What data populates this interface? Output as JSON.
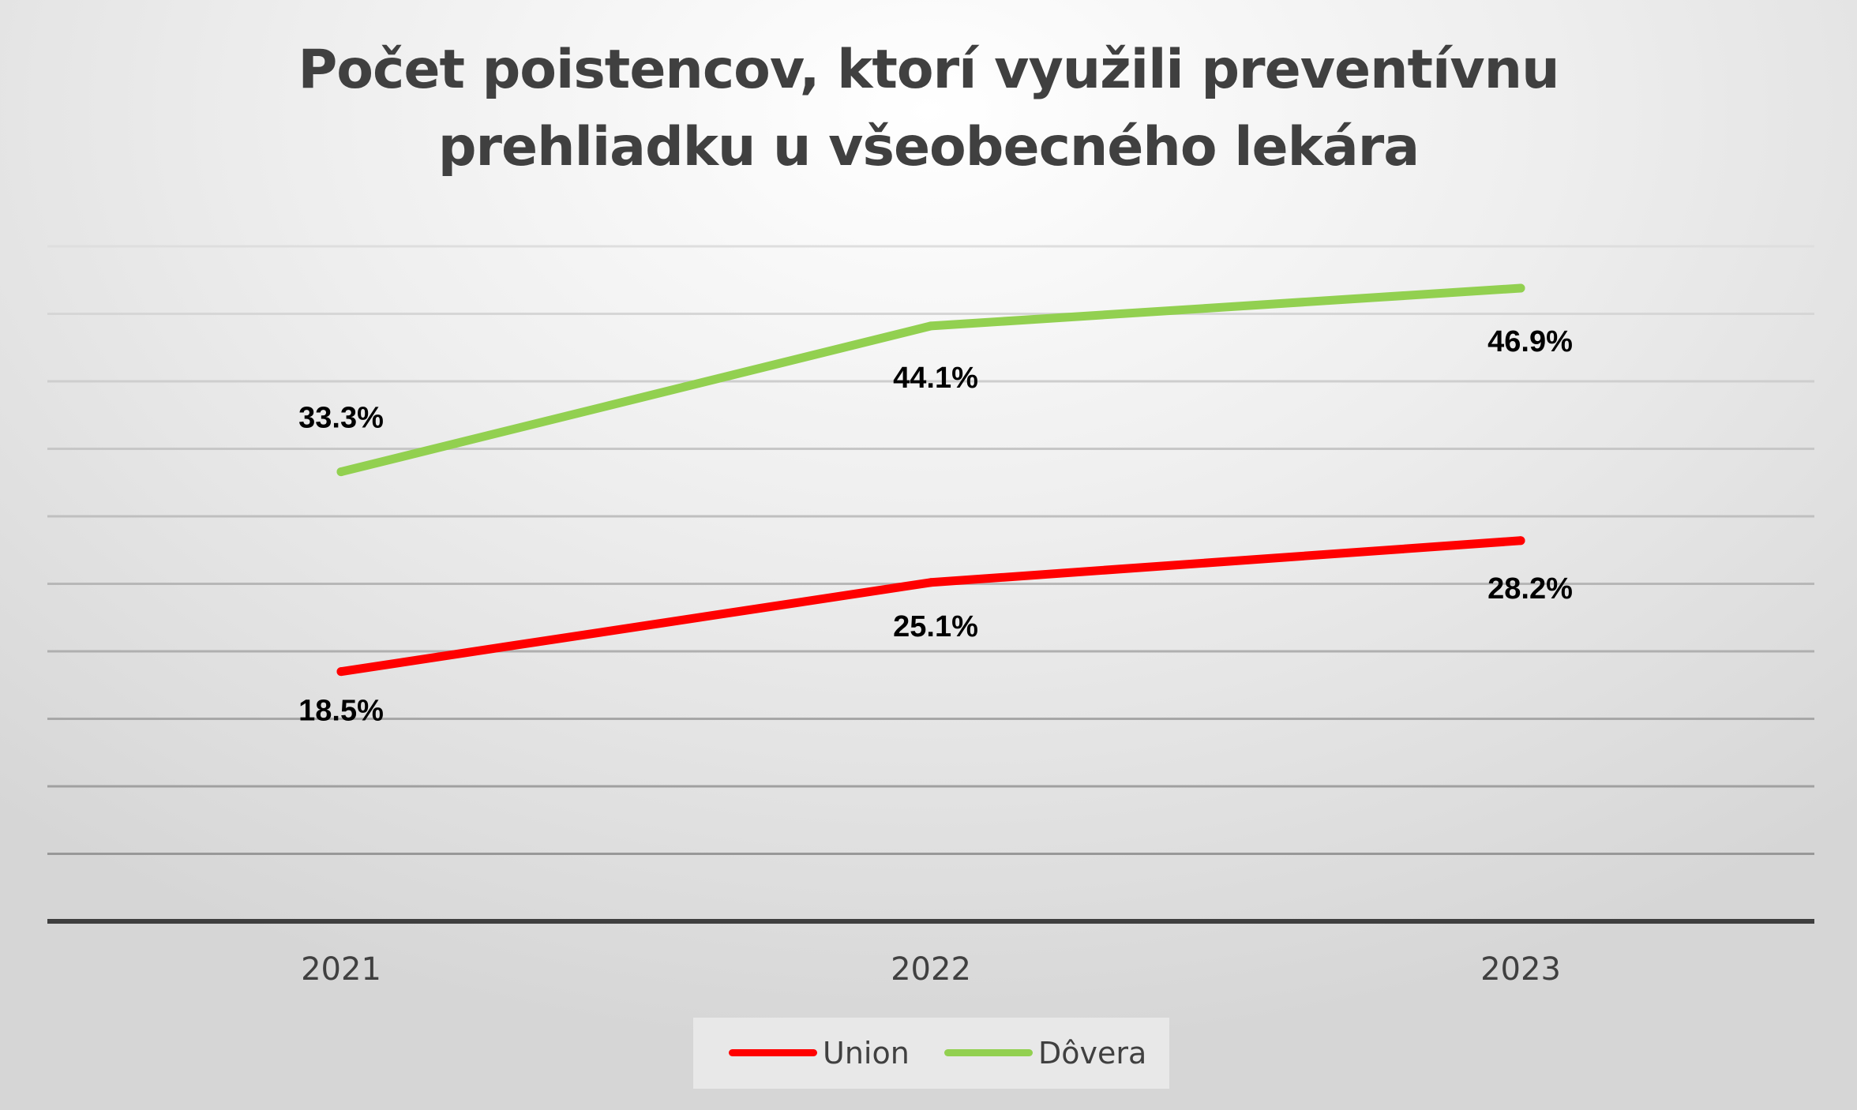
{
  "chart_data": {
    "type": "line",
    "title": "Počet poistencov, ktorí využili preventívnu prehliadku u všeobecného lekára",
    "title_lines": [
      "Počet poistencov, ktorí využili preventívnu",
      "prehliadku u všeobecného lekára"
    ],
    "categories": [
      "2021",
      "2022",
      "2023"
    ],
    "series": [
      {
        "name": "Union",
        "values": [
          18.5,
          25.1,
          28.2
        ],
        "labels": [
          "18.5%",
          "25.1%",
          "28.2%"
        ],
        "color": "#ff0000"
      },
      {
        "name": "Dôvera",
        "values": [
          33.3,
          44.1,
          46.9
        ],
        "labels": [
          "33.3%",
          "44.1%",
          "46.9%"
        ],
        "color": "#92d050"
      }
    ],
    "ylim": [
      0,
      50
    ],
    "y_gridline_step": 5,
    "y_axis_labels_shown": false,
    "grid": true,
    "legend_position": "bottom",
    "xlabel": "",
    "ylabel": ""
  },
  "colors": {
    "title": "#404040",
    "axis_line": "#3f3f3f",
    "tick_label": "#404040",
    "data_label": "#000000",
    "legend_box": "#e8e8e8"
  }
}
